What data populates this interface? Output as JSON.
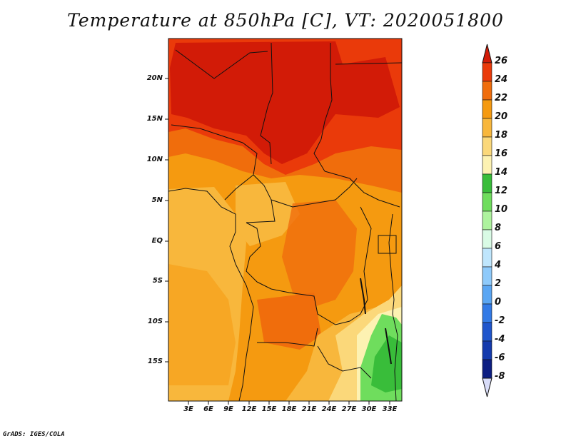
{
  "title": "Temperature at 850hPa [C], VT: 2020051800",
  "credit": "GrADS: IGES/COLA",
  "map": {
    "lat_labels": [
      "20N",
      "15N",
      "10N",
      "5N",
      "EQ",
      "5S",
      "10S",
      "15S"
    ],
    "lon_labels": [
      "3E",
      "6E",
      "9E",
      "12E",
      "15E",
      "18E",
      "21E",
      "24E",
      "27E",
      "30E",
      "33E"
    ]
  },
  "colorbar": {
    "labels": [
      "26",
      "24",
      "22",
      "20",
      "18",
      "16",
      "14",
      "12",
      "10",
      "8",
      "6",
      "4",
      "2",
      "0",
      "-2",
      "-4",
      "-6",
      "-8"
    ],
    "colors": [
      "#d21b07",
      "#ea3a0a",
      "#f06d0c",
      "#f59a10",
      "#f8b73c",
      "#fbd87a",
      "#fdf2b2",
      "#39bd3a",
      "#6fdd5d",
      "#aef39e",
      "#d9fbe5",
      "#bfe6fd",
      "#8ecafb",
      "#5aa6f3",
      "#327ae6",
      "#1f55cc",
      "#143aad",
      "#0d1e82"
    ],
    "over_color": "#d21b07",
    "under_color": "#d8dcf8"
  }
}
